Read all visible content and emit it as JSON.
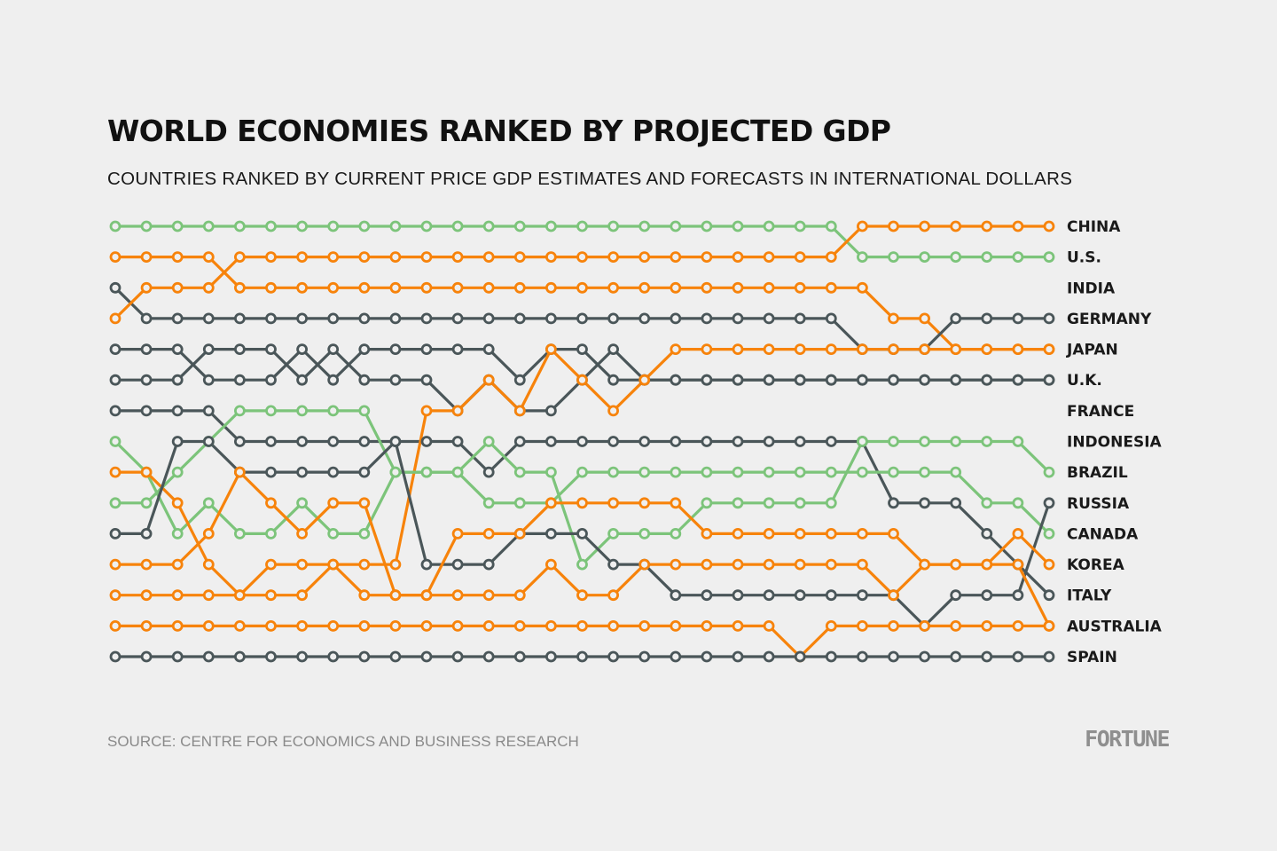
{
  "chart_data": {
    "type": "bump",
    "title": "WORLD ECONOMIES RANKED BY PROJECTED GDP",
    "subtitle": "COUNTRIES RANKED BY CURRENT PRICE GDP ESTIMATES AND FORECASTS IN INTERNATIONAL DOLLARS",
    "source": "SOURCE: CENTRE FOR ECONOMICS AND BUSINESS RESEARCH",
    "brand": "FORTUNE",
    "periods": 31,
    "rank_axis": [
      1,
      15
    ],
    "colors": {
      "green": "#7cc47a",
      "orange": "#f7830b",
      "gray": "#4a5659"
    },
    "labels": [
      "CHINA",
      "U.S.",
      "INDIA",
      "GERMANY",
      "JAPAN",
      "U.K.",
      "FRANCE",
      "INDONESIA",
      "BRAZIL",
      "RUSSIA",
      "CANADA",
      "KOREA",
      "ITALY",
      "AUSTRALIA",
      "SPAIN"
    ],
    "series": [
      {
        "color": "green",
        "ranks": [
          1,
          1,
          1,
          1,
          1,
          1,
          1,
          1,
          1,
          1,
          1,
          1,
          1,
          1,
          1,
          1,
          1,
          1,
          1,
          1,
          1,
          1,
          1,
          1,
          2,
          2,
          2,
          2,
          2,
          2,
          2
        ]
      },
      {
        "color": "orange",
        "ranks": [
          2,
          2,
          2,
          2,
          3,
          3,
          3,
          3,
          3,
          3,
          3,
          3,
          3,
          3,
          3,
          3,
          3,
          3,
          3,
          3,
          3,
          3,
          3,
          3,
          3,
          4,
          4,
          5,
          5,
          5,
          5
        ]
      },
      {
        "color": "gray",
        "ranks": [
          3,
          4,
          4,
          4,
          4,
          4,
          4,
          4,
          4,
          4,
          4,
          4,
          4,
          4,
          4,
          4,
          4,
          4,
          4,
          4,
          4,
          4,
          4,
          4,
          5,
          5,
          5,
          4,
          4,
          4,
          4
        ]
      },
      {
        "color": "orange",
        "ranks": [
          4,
          3,
          3,
          3,
          2,
          2,
          2,
          2,
          2,
          2,
          2,
          2,
          2,
          2,
          2,
          2,
          2,
          2,
          2,
          2,
          2,
          2,
          2,
          2,
          1,
          1,
          1,
          1,
          1,
          1,
          1
        ]
      },
      {
        "color": "gray",
        "ranks": [
          5,
          5,
          5,
          6,
          6,
          6,
          5,
          6,
          5,
          5,
          5,
          5,
          5,
          6,
          5,
          5,
          6,
          6,
          6,
          6,
          6,
          6,
          6,
          6,
          6,
          6,
          6,
          6,
          6,
          6,
          6
        ]
      },
      {
        "color": "gray",
        "ranks": [
          6,
          6,
          6,
          5,
          5,
          5,
          6,
          5,
          6,
          6,
          6,
          7,
          6,
          7,
          7,
          6,
          5,
          6,
          6,
          6,
          6,
          6,
          6,
          6,
          6,
          6,
          6,
          6,
          6,
          6,
          6
        ]
      },
      {
        "color": "gray",
        "ranks": [
          7,
          7,
          7,
          7,
          8,
          8,
          8,
          8,
          8,
          8,
          8,
          8,
          9,
          8,
          8,
          8,
          8,
          8,
          8,
          8,
          8,
          8,
          8,
          8,
          8,
          10,
          10,
          10,
          11,
          12,
          13
        ]
      },
      {
        "color": "green",
        "ranks": [
          8,
          9,
          11,
          10,
          11,
          11,
          10,
          11,
          11,
          9,
          9,
          9,
          8,
          9,
          9,
          12,
          11,
          11,
          11,
          10,
          10,
          10,
          10,
          10,
          8,
          8,
          8,
          8,
          8,
          8,
          9
        ]
      },
      {
        "color": "orange",
        "ranks": [
          9,
          9,
          10,
          12,
          13,
          13,
          13,
          12,
          12,
          12,
          7,
          7,
          6,
          7,
          5,
          6,
          7,
          6,
          5,
          5,
          5,
          5,
          5,
          5,
          5,
          5,
          5,
          5,
          5,
          5,
          5
        ]
      },
      {
        "color": "green",
        "ranks": [
          10,
          10,
          9,
          8,
          7,
          7,
          7,
          7,
          7,
          9,
          9,
          9,
          10,
          10,
          10,
          9,
          9,
          9,
          9,
          9,
          9,
          9,
          9,
          9,
          9,
          9,
          9,
          9,
          10,
          10,
          11
        ]
      },
      {
        "color": "gray",
        "ranks": [
          11,
          11,
          8,
          8,
          9,
          9,
          9,
          9,
          9,
          8,
          12,
          12,
          12,
          11,
          11,
          11,
          12,
          12,
          13,
          13,
          13,
          13,
          13,
          13,
          13,
          13,
          14,
          13,
          13,
          13,
          10
        ]
      },
      {
        "color": "orange",
        "ranks": [
          12,
          12,
          12,
          11,
          9,
          10,
          11,
          10,
          10,
          13,
          13,
          11,
          11,
          11,
          10,
          10,
          10,
          10,
          10,
          11,
          11,
          11,
          11,
          11,
          11,
          11,
          12,
          12,
          12,
          11,
          12
        ]
      },
      {
        "color": "orange",
        "ranks": [
          13,
          13,
          13,
          13,
          13,
          12,
          12,
          12,
          13,
          13,
          13,
          13,
          13,
          13,
          12,
          13,
          13,
          12,
          12,
          12,
          12,
          12,
          12,
          12,
          12,
          13,
          12,
          12,
          12,
          12,
          14
        ]
      },
      {
        "color": "orange",
        "ranks": [
          14,
          14,
          14,
          14,
          14,
          14,
          14,
          14,
          14,
          14,
          14,
          14,
          14,
          14,
          14,
          14,
          14,
          14,
          14,
          14,
          14,
          14,
          15,
          14,
          14,
          14,
          14,
          14,
          14,
          14,
          14
        ]
      },
      {
        "color": "gray",
        "ranks": [
          15,
          15,
          15,
          15,
          15,
          15,
          15,
          15,
          15,
          15,
          15,
          15,
          15,
          15,
          15,
          15,
          15,
          15,
          15,
          15,
          15,
          15,
          15,
          15,
          15,
          15,
          15,
          15,
          15,
          15,
          15
        ]
      }
    ]
  }
}
